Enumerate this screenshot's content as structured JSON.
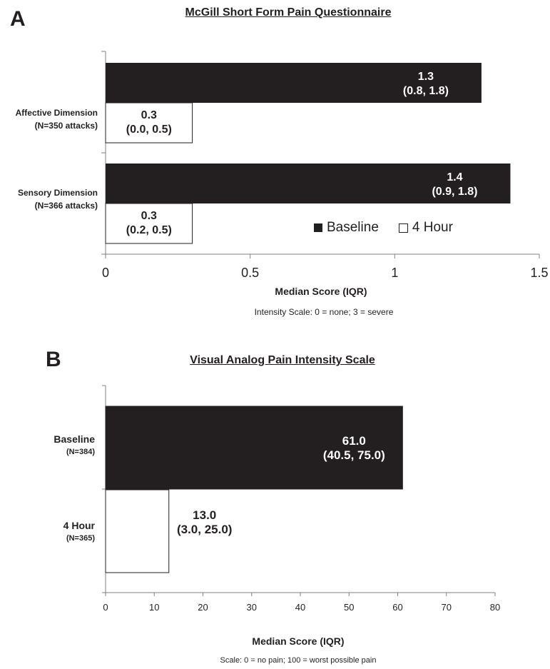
{
  "colors": {
    "baseline": "#231f20",
    "four_hour": "#ffffff",
    "axis": "#808080",
    "text": "#231f20"
  },
  "panel_a": {
    "letter": "A",
    "title": "McGill Short Form Pain Questionnaire",
    "categories": [
      {
        "line1": "Affective Dimension",
        "line2": "(N=350 attacks)"
      },
      {
        "line1": "Sensory Dimension",
        "line2": "(N=366 attacks)"
      }
    ],
    "xlabel": "Median Score (IQR)",
    "scale_note": "Intensity Scale:  0 = none;  3 = severe",
    "legend": {
      "baseline": "Baseline",
      "four_hour": "4 Hour"
    }
  },
  "panel_b": {
    "letter": "B",
    "title": "Visual Analog Pain Intensity Scale",
    "categories": [
      {
        "line1": "Baseline",
        "line2": "(N=384)"
      },
      {
        "line1": "4 Hour",
        "line2": "(N=365)"
      }
    ],
    "xlabel": "Median Score (IQR)",
    "scale_note": "Scale: 0 = no pain; 100 = worst possible pain"
  },
  "chart_data": [
    {
      "type": "bar",
      "orientation": "horizontal",
      "title": "McGill Short Form Pain Questionnaire",
      "categories": [
        "Affective Dimension (N=350 attacks)",
        "Sensory Dimension (N=366 attacks)"
      ],
      "series": [
        {
          "name": "Baseline",
          "values": [
            1.3,
            1.4
          ],
          "labels": [
            "1.3",
            "1.4"
          ],
          "iqr": [
            "(0.8, 1.8)",
            "(0.9, 1.8)"
          ]
        },
        {
          "name": "4 Hour",
          "values": [
            0.3,
            0.3
          ],
          "labels": [
            "0.3",
            "0.3"
          ],
          "iqr": [
            "(0.0, 0.5)",
            "(0.2, 0.5)"
          ]
        }
      ],
      "xlabel": "Median Score (IQR)",
      "xlim": [
        0,
        1.5
      ],
      "xticks": [
        "0",
        "0.5",
        "1",
        "1.5"
      ],
      "legend": "bottom-right inside plot",
      "grid": false
    },
    {
      "type": "bar",
      "orientation": "horizontal",
      "title": "Visual Analog Pain Intensity Scale",
      "categories": [
        "Baseline (N=384)",
        "4 Hour (N=365)"
      ],
      "series": [
        {
          "values": [
            61.0,
            13.0
          ],
          "labels": [
            "61.0",
            "13.0"
          ],
          "iqr": [
            "(40.5, 75.0)",
            "(3.0, 25.0)"
          ],
          "fills": [
            "baseline",
            "four_hour"
          ]
        }
      ],
      "xlabel": "Median Score (IQR)",
      "xlim": [
        0,
        80
      ],
      "xticks": [
        "0",
        "10",
        "20",
        "30",
        "40",
        "50",
        "60",
        "70",
        "80"
      ],
      "grid": false
    }
  ]
}
